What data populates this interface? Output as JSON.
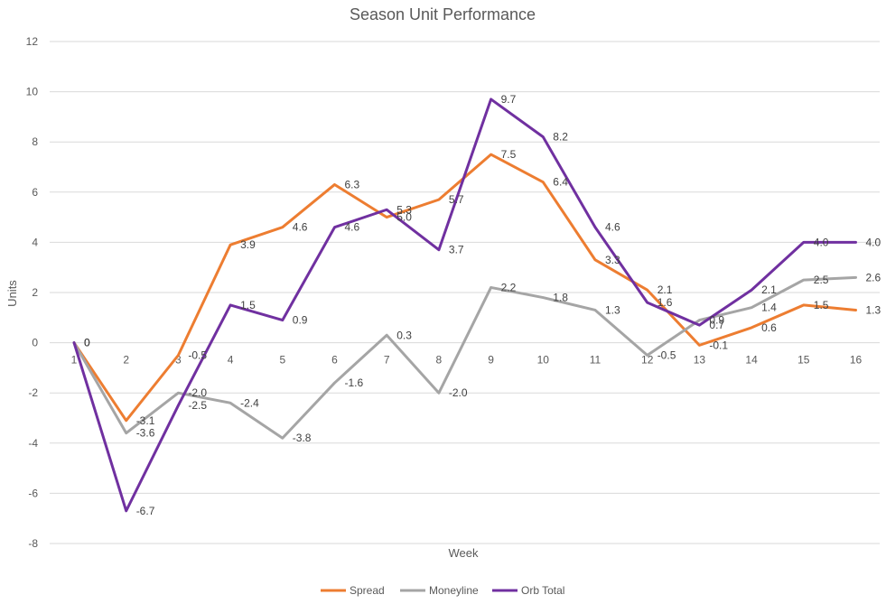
{
  "chart_data": {
    "type": "line",
    "title": "Season Unit Performance",
    "xlabel": "Week",
    "ylabel": "Units",
    "categories": [
      "1",
      "2",
      "3",
      "4",
      "5",
      "6",
      "7",
      "8",
      "9",
      "10",
      "11",
      "12",
      "13",
      "14",
      "15",
      "16"
    ],
    "ylim": [
      -8,
      12
    ],
    "yticks": [
      "12",
      "10",
      "8",
      "6",
      "4",
      "2",
      "0",
      "-2",
      "-4",
      "-6",
      "-8"
    ],
    "grid": true,
    "legend_position": "bottom",
    "series": [
      {
        "name": "Spread",
        "color": "#ed7d31",
        "values": [
          0,
          -3.1,
          -0.5,
          3.9,
          4.6,
          6.3,
          5.0,
          5.7,
          7.5,
          6.4,
          3.3,
          2.1,
          -0.1,
          0.6,
          1.5,
          1.3
        ],
        "labels": [
          "0",
          "-3.1",
          "-0.5",
          "3.9",
          "4.6",
          "6.3",
          "5.0",
          "5.7",
          "7.5",
          "6.4",
          "3.3",
          "2.1",
          "-0.1",
          "0.6",
          "1.5",
          "1.3"
        ]
      },
      {
        "name": "Moneyline",
        "color": "#a5a5a5",
        "values": [
          0,
          -3.6,
          -2.0,
          -2.4,
          -3.8,
          -1.6,
          0.3,
          -2.0,
          2.2,
          1.8,
          1.3,
          -0.5,
          0.9,
          1.4,
          2.5,
          2.6
        ],
        "labels": [
          "0",
          "-3.6",
          "-2.0",
          "-2.4",
          "-3.8",
          "-1.6",
          "0.3",
          "-2.0",
          "2.2",
          "1.8",
          "1.3",
          "-0.5",
          "0.9",
          "1.4",
          "2.5",
          "2.6"
        ]
      },
      {
        "name": "Orb Total",
        "color": "#7030a0",
        "values": [
          0,
          -6.7,
          -2.5,
          1.5,
          0.9,
          4.6,
          5.3,
          3.7,
          9.7,
          8.2,
          4.6,
          1.6,
          0.7,
          2.1,
          4.0,
          4.0
        ],
        "labels": [
          "0",
          "-6.7",
          "-2.5",
          "1.5",
          "0.9",
          "4.6",
          "5.3",
          "3.7",
          "9.7",
          "8.2",
          "4.6",
          "1.6",
          "0.7",
          "2.1",
          "4.0",
          "4.0"
        ]
      }
    ]
  }
}
